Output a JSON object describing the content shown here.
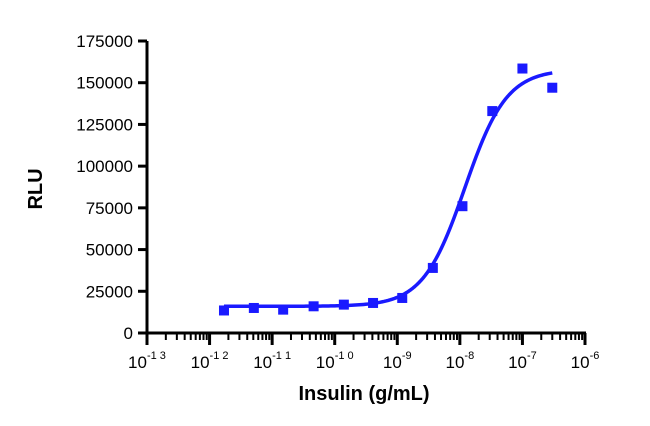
{
  "chart_data": {
    "type": "scatter",
    "title": "",
    "xlabel": "Insulin (g/mL)",
    "ylabel": "RLU",
    "x_scale": "log",
    "xlim": [
      1e-13,
      1e-06
    ],
    "ylim": [
      0,
      175000
    ],
    "x_ticks": [
      {
        "base": "10",
        "exp": "-1 3",
        "value": 1e-13
      },
      {
        "base": "10",
        "exp": "-1 2",
        "value": 1e-12
      },
      {
        "base": "10",
        "exp": "-1 1",
        "value": 1e-11
      },
      {
        "base": "10",
        "exp": "-1 0",
        "value": 1e-10
      },
      {
        "base": "10",
        "exp": "-9",
        "value": 1e-09
      },
      {
        "base": "10",
        "exp": "-8",
        "value": 1e-08
      },
      {
        "base": "10",
        "exp": "-7",
        "value": 1e-07
      },
      {
        "base": "10",
        "exp": "-6",
        "value": 1e-06
      }
    ],
    "y_ticks": [
      "0",
      "25000",
      "50000",
      "75000",
      "100000",
      "125000",
      "150000",
      "175000"
    ],
    "y_tick_values": [
      0,
      25000,
      50000,
      75000,
      100000,
      125000,
      150000,
      175000
    ],
    "grid": false,
    "legend": "none",
    "color": "#1a1aff",
    "series": [
      {
        "marker": "square",
        "points": [
          {
            "x": 1.7e-12,
            "y": 13500
          },
          {
            "x": 5.1e-12,
            "y": 15000
          },
          {
            "x": 1.5e-11,
            "y": 14000
          },
          {
            "x": 4.6e-11,
            "y": 16000
          },
          {
            "x": 1.4e-10,
            "y": 17000
          },
          {
            "x": 4.1e-10,
            "y": 18000
          },
          {
            "x": 1.2e-09,
            "y": 21000
          },
          {
            "x": 3.7e-09,
            "y": 39000
          },
          {
            "x": 1.1e-08,
            "y": 76000
          },
          {
            "x": 3.3e-08,
            "y": 133000
          },
          {
            "x": 1e-07,
            "y": 158500
          },
          {
            "x": 3e-07,
            "y": 147000
          }
        ]
      }
    ],
    "fit": {
      "model": "4PL",
      "bottom": 16000,
      "top": 158000,
      "log_ec50": -7.92,
      "hill": 1.3,
      "x_range": [
        1.7e-12,
        3e-07
      ]
    }
  }
}
